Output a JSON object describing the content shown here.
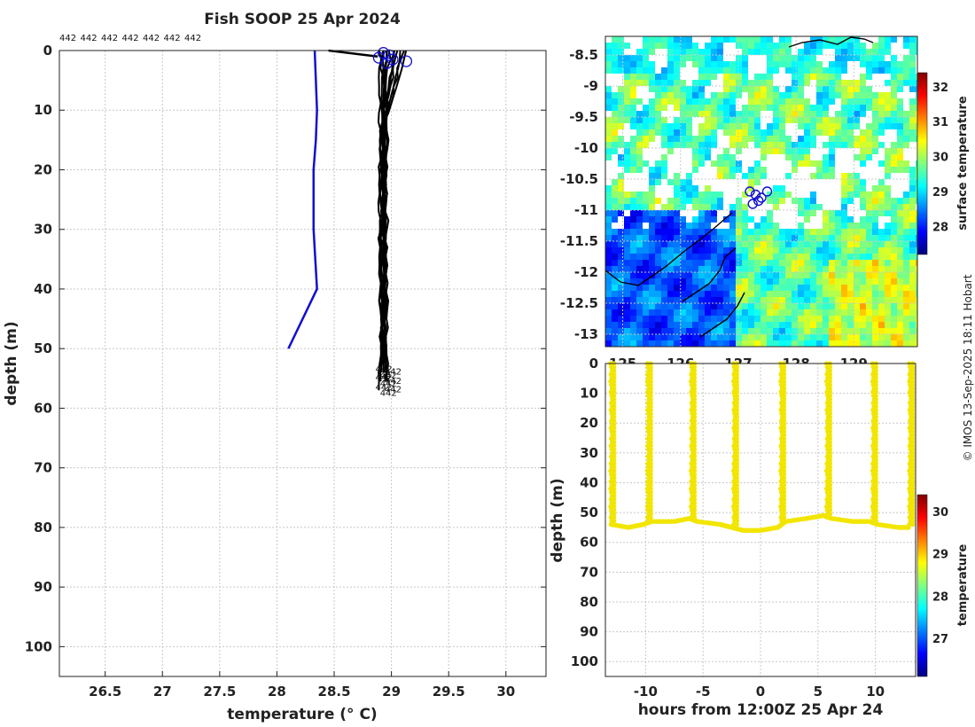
{
  "title": "Fish SOOP 25 Apr 2024",
  "copyright": "© IMOS 13-Sep-2025 18:11 Hobart",
  "palette": {
    "jet": [
      "#00007f",
      "#0000ff",
      "#007fff",
      "#00ffff",
      "#7fff7f",
      "#ffff00",
      "#ff7f00",
      "#ff0000",
      "#7f0000"
    ],
    "profile_color": "#000000",
    "climatology_color": "#1010d0",
    "marker_color": "#1010d0",
    "yellow_dots": "#f2e600"
  },
  "chart_data": [
    {
      "id": "profiles",
      "type": "line",
      "title": "Fish SOOP 25 Apr 2024",
      "xlabel": "temperature (° C)",
      "ylabel": "depth (m)",
      "xlim": [
        26.1,
        30.35
      ],
      "ylim": [
        0,
        105
      ],
      "y_reversed": true,
      "xticks": [
        "26.5",
        "27",
        "27.5",
        "28",
        "28.5",
        "29",
        "29.5",
        "30"
      ],
      "yticks": [
        "0",
        "10",
        "20",
        "30",
        "40",
        "50",
        "60",
        "70",
        "80",
        "90",
        "100"
      ],
      "top_labels": [
        "442",
        "442",
        "442",
        "442",
        "442",
        "442",
        "442"
      ],
      "end_labels": [
        "442",
        "442",
        "442",
        "442",
        "442",
        "442",
        "442",
        "442",
        "442"
      ],
      "climatology": {
        "name": "climatology",
        "x": [
          28.33,
          28.35,
          28.34,
          28.32,
          28.32,
          28.35,
          28.1
        ],
        "y": [
          0,
          10,
          15,
          20,
          30,
          40,
          50
        ]
      },
      "profile_surface_temps": [
        28.96,
        29.05,
        29.12,
        28.9,
        28.99,
        29.08,
        28.94,
        29.02,
        29.1,
        28.92,
        28.97,
        29.03
      ],
      "profile_base_temps": [
        28.92,
        28.94,
        28.95,
        28.91,
        28.93,
        28.96,
        28.9,
        28.94,
        28.95,
        28.92,
        28.93,
        28.94
      ],
      "profile_bottom_depths": [
        53,
        54,
        55,
        56,
        54,
        55,
        57,
        53,
        56,
        55,
        54,
        56
      ],
      "cast_start_marker": {
        "x": [
          28.45,
          28.88
        ],
        "y": [
          0,
          1
        ]
      },
      "circle_markers": {
        "x": [
          28.89,
          28.93,
          28.98,
          29.01,
          28.96,
          29.13
        ],
        "y": [
          1.2,
          0.4,
          0.8,
          1.5,
          2.1,
          1.8
        ]
      }
    },
    {
      "id": "sst_map",
      "type": "heatmap",
      "ylim": [
        -13.2,
        -8.2
      ],
      "xlim": [
        124.7,
        130.1
      ],
      "yticks": [
        "-8.5",
        "-9",
        "-9.5",
        "-10",
        "-10.5",
        "-11",
        "-11.5",
        "-12",
        "-12.5",
        "-13"
      ],
      "xticks": [
        "125",
        "126",
        "127",
        "128",
        "129"
      ],
      "colorbar_label": "surface temperature",
      "colorbar_range": [
        27.2,
        32.4
      ],
      "colorbar_ticks": [
        "28",
        "29",
        "30",
        "31",
        "32"
      ],
      "track_markers": {
        "lon": [
          127.2,
          127.3,
          127.4,
          127.5,
          127.35,
          127.25
        ],
        "lat": [
          -10.7,
          -10.75,
          -10.8,
          -10.7,
          -10.85,
          -10.9
        ]
      }
    },
    {
      "id": "time_depth",
      "type": "scatter",
      "xlabel": "hours from 12:00Z 25 Apr 24",
      "ylabel": "depth (m)",
      "xlim": [
        -13.5,
        13.5
      ],
      "ylim": [
        0,
        105
      ],
      "y_reversed": true,
      "xticks": [
        "-10",
        "-5",
        "0",
        "5",
        "10"
      ],
      "yticks": [
        "0",
        "10",
        "20",
        "30",
        "40",
        "50",
        "60",
        "70",
        "80",
        "90",
        "100"
      ],
      "casts": [
        {
          "t": -13.0,
          "bottom": 54
        },
        {
          "t": -9.8,
          "bottom": 53
        },
        {
          "t": -6.0,
          "bottom": 52
        },
        {
          "t": -2.3,
          "bottom": 55
        },
        {
          "t": 1.8,
          "bottom": 54
        },
        {
          "t": 5.8,
          "bottom": 52
        },
        {
          "t": 9.8,
          "bottom": 53
        },
        {
          "t": 13.0,
          "bottom": 55
        }
      ],
      "bottom_trace": {
        "t": [
          -13.0,
          -11.5,
          -10.2,
          -9.5,
          -7.5,
          -6.2,
          -5.5,
          -3.5,
          -2.5,
          -1.5,
          0.0,
          1.5,
          2.2,
          4.0,
          5.5,
          6.2,
          8.0,
          9.5,
          10.2,
          12.0,
          13.0
        ],
        "depth": [
          54,
          55,
          54,
          53,
          53,
          52,
          53,
          54,
          55,
          56,
          56,
          55,
          53,
          52,
          51,
          52,
          53,
          53,
          54,
          55,
          55
        ]
      },
      "colorbar_label": "temperature",
      "colorbar_range": [
        26.1,
        30.4
      ],
      "colorbar_ticks": [
        "27",
        "28",
        "29",
        "30"
      ]
    }
  ]
}
